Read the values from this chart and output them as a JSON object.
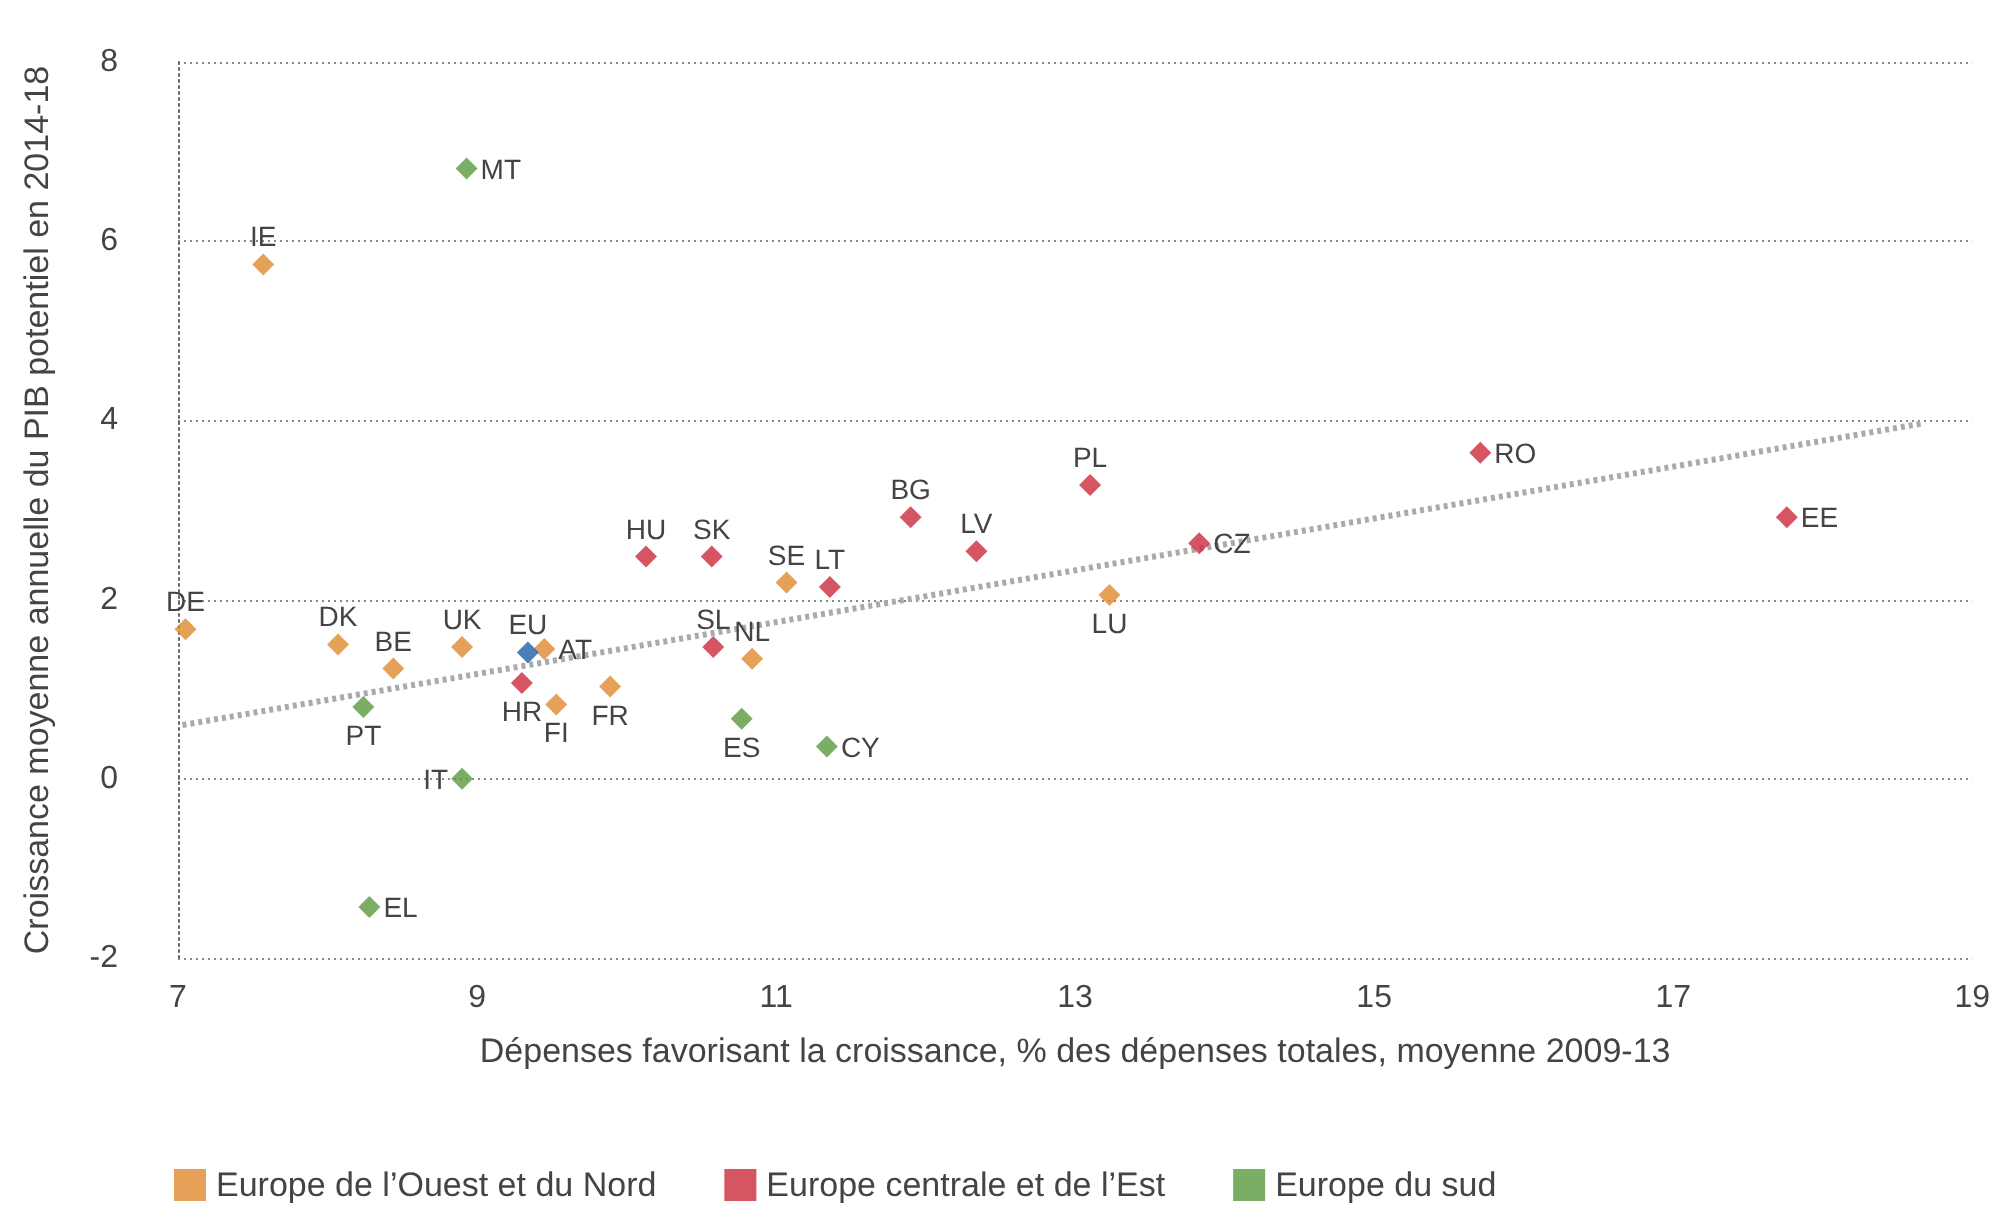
{
  "chart_data": {
    "type": "scatter",
    "xlabel": "Dépenses favorisant la croissance, % des dépenses totales, moyenne 2009-13",
    "ylabel": "Croissance moyenne annuelle du PIB potentiel en 2014-18",
    "xlim": [
      7,
      19
    ],
    "xticks": [
      7,
      9,
      11,
      13,
      15,
      17,
      19
    ],
    "ylim": [
      -2,
      8
    ],
    "yticks": [
      -2,
      0,
      2,
      4,
      6,
      8
    ],
    "grid": "y",
    "legend": "bottom",
    "marker": "diamond",
    "series": [
      {
        "name": "Europe de l’Ouest et du Nord",
        "color": "#e08a2e",
        "x": [
          7.05,
          7.57,
          8.07,
          8.44,
          8.9,
          9.45,
          9.53,
          9.89,
          11.07,
          10.84,
          13.23
        ],
        "values": [
          1.67,
          5.74,
          1.5,
          1.23,
          1.47,
          1.45,
          0.83,
          1.03,
          2.19,
          1.34,
          2.05
        ]
      },
      {
        "name": "Europe centrale et de l’Est",
        "color": "#cc2a3b",
        "x": [
          9.3,
          10.13,
          10.57,
          10.58,
          11.36,
          11.9,
          12.34,
          13.1,
          13.83,
          15.71,
          17.76
        ],
        "values": [
          1.07,
          2.48,
          2.48,
          1.47,
          2.14,
          2.92,
          2.54,
          3.28,
          2.63,
          3.64,
          2.92
        ]
      },
      {
        "name": "Europe du sud",
        "color": "#5a9a3f",
        "x": [
          8.24,
          8.28,
          8.9,
          8.93,
          10.77,
          11.34
        ],
        "values": [
          0.8,
          -1.43,
          0.0,
          6.81,
          0.67,
          0.36
        ]
      },
      {
        "color": "#1f5fa8",
        "x": [
          9.34
        ],
        "values": [
          1.41
        ]
      },
      {
        "type": "line",
        "color": "#aaaaaa",
        "line_style": "dotted",
        "marker": "none",
        "x": [
          7.03,
          18.68
        ],
        "values": [
          0.6,
          3.97
        ]
      }
    ],
    "annotations": [
      {
        "text": "DE",
        "x": 7.05,
        "y": 1.67
      },
      {
        "text": "IE",
        "x": 7.57,
        "y": 5.74
      },
      {
        "text": "DK",
        "x": 8.07,
        "y": 1.5
      },
      {
        "text": "BE",
        "x": 8.44,
        "y": 1.23
      },
      {
        "text": "UK",
        "x": 8.9,
        "y": 1.47
      },
      {
        "text": "AT",
        "x": 9.45,
        "y": 1.45
      },
      {
        "text": "FI",
        "x": 9.53,
        "y": 0.83
      },
      {
        "text": "FR",
        "x": 9.89,
        "y": 1.03
      },
      {
        "text": "SE",
        "x": 11.07,
        "y": 2.19
      },
      {
        "text": "NL",
        "x": 10.84,
        "y": 1.34
      },
      {
        "text": "LU",
        "x": 13.23,
        "y": 2.05
      },
      {
        "text": "HR",
        "x": 9.3,
        "y": 1.07
      },
      {
        "text": "HU",
        "x": 10.13,
        "y": 2.48
      },
      {
        "text": "SK",
        "x": 10.57,
        "y": 2.48
      },
      {
        "text": "SL",
        "x": 10.58,
        "y": 1.47
      },
      {
        "text": "LT",
        "x": 11.36,
        "y": 2.14
      },
      {
        "text": "BG",
        "x": 11.9,
        "y": 2.92
      },
      {
        "text": "LV",
        "x": 12.34,
        "y": 2.54
      },
      {
        "text": "PL",
        "x": 13.1,
        "y": 3.28
      },
      {
        "text": "CZ",
        "x": 13.83,
        "y": 2.63
      },
      {
        "text": "RO",
        "x": 15.71,
        "y": 3.64
      },
      {
        "text": "EE",
        "x": 17.76,
        "y": 2.92
      },
      {
        "text": "PT",
        "x": 8.24,
        "y": 0.8
      },
      {
        "text": "EL",
        "x": 8.28,
        "y": -1.43
      },
      {
        "text": "IT",
        "x": 8.9,
        "y": 0.0
      },
      {
        "text": "MT",
        "x": 8.93,
        "y": 6.81
      },
      {
        "text": "ES",
        "x": 10.77,
        "y": 0.67
      },
      {
        "text": "CY",
        "x": 11.34,
        "y": 0.36
      },
      {
        "text": "EU",
        "x": 9.34,
        "y": 1.41
      }
    ]
  }
}
